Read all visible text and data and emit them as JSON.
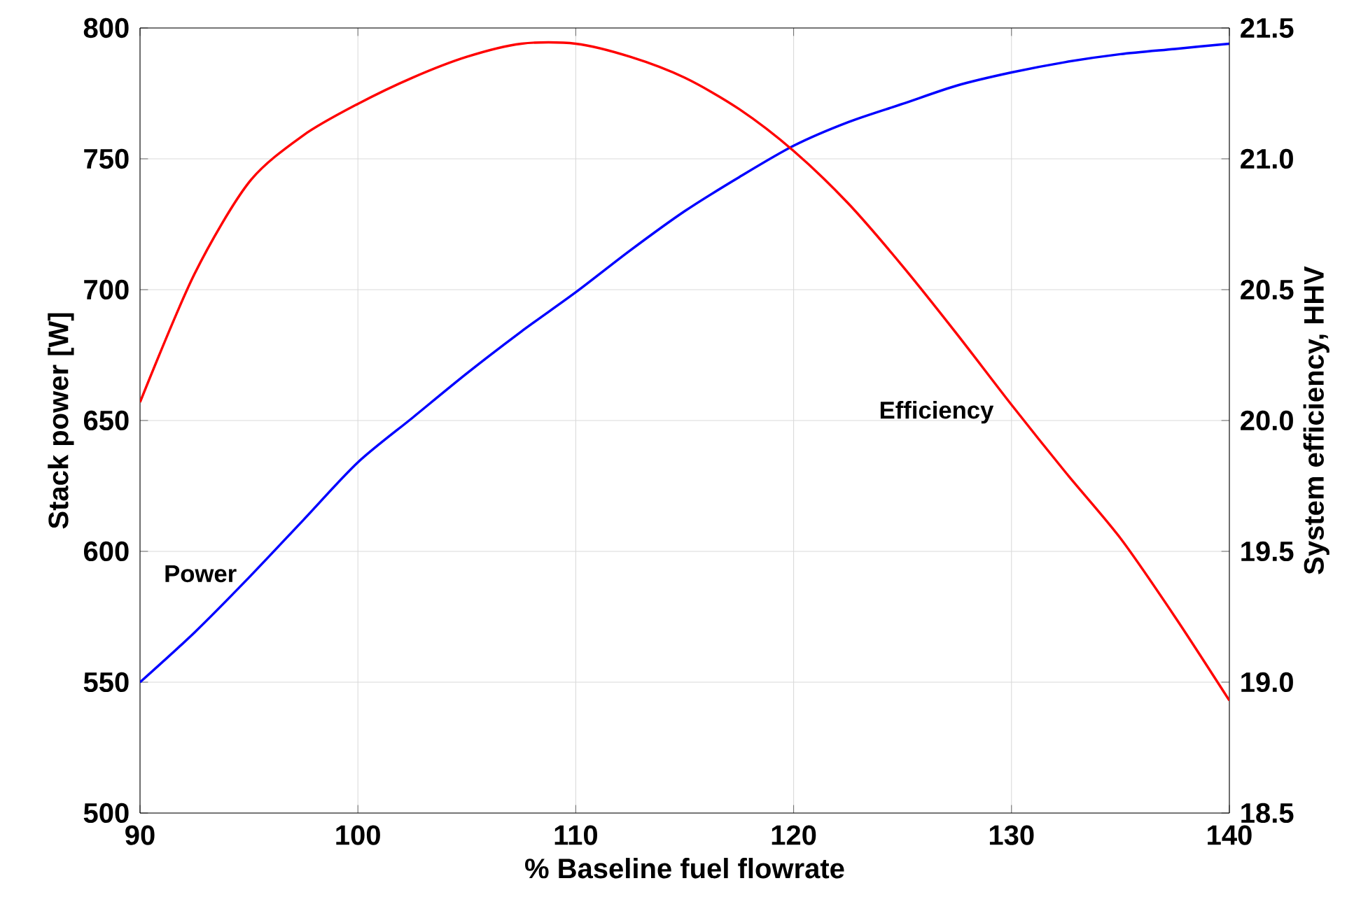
{
  "chart_data": {
    "type": "line",
    "xlabel": "% Baseline fuel flowrate",
    "ylabel": "Stack power  [W]",
    "y2label": "System efficiency, HHV",
    "x": [
      90,
      92.5,
      95,
      97.5,
      100,
      102.5,
      105,
      107.5,
      110,
      112.5,
      115,
      117.5,
      120,
      122.5,
      125,
      127.5,
      130,
      132.5,
      135,
      137.5,
      140
    ],
    "series": [
      {
        "name": "Power",
        "color": "#0000ff",
        "values": [
          550,
          569,
          590,
          612,
          634,
          651,
          668,
          684,
          699,
          715,
          730,
          743,
          755,
          764,
          771,
          778,
          783,
          787,
          790,
          792,
          794
        ]
      },
      {
        "name": "Efficiency",
        "color": "#ff0000",
        "axis": "y2",
        "values": [
          20.07,
          20.56,
          20.91,
          21.09,
          21.21,
          21.31,
          21.39,
          21.44,
          21.44,
          21.39,
          21.31,
          21.19,
          21.03,
          20.83,
          20.59,
          20.33,
          20.06,
          19.8,
          19.55,
          19.25,
          18.93
        ]
      }
    ],
    "xlim": [
      90,
      140
    ],
    "xticks": [
      90,
      100,
      110,
      120,
      130,
      140
    ],
    "ylim": [
      500,
      800
    ],
    "yticks": [
      500,
      550,
      600,
      650,
      700,
      750,
      800
    ],
    "y2lim": [
      18.5,
      21.5
    ],
    "y2ticks": [
      {
        "value": 18.5,
        "label": "18.5"
      },
      {
        "value": 19.0,
        "label": "19.0"
      },
      {
        "value": 19.5,
        "label": "19.5"
      },
      {
        "value": 20.0,
        "label": "20.0"
      },
      {
        "value": 20.5,
        "label": "20.5"
      },
      {
        "value": 21.0,
        "label": "21.0"
      },
      {
        "value": 21.5,
        "label": "21.5"
      }
    ],
    "grid": true,
    "marker": "none",
    "line_style": "solid"
  }
}
